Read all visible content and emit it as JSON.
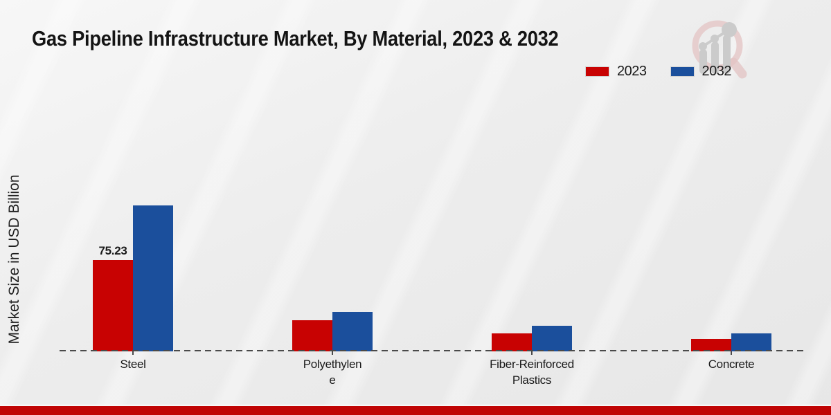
{
  "page": {
    "title": "Gas Pipeline Infrastructure Market, By Material, 2023 & 2032",
    "ylabel": "Market Size in USD Billion"
  },
  "colors": {
    "series_2023": "#c80202",
    "series_2032": "#1b4f9c",
    "footer_bar": "#c00404",
    "baseline": "#4a4a4a",
    "background": "#ececec"
  },
  "watermark": {
    "name": "magnifier-growth-chart-logo",
    "ring_color": "#e3c3c3",
    "bars_color": "#cbcbcb"
  },
  "chart_data": {
    "type": "bar",
    "title": "Gas Pipeline Infrastructure Market, By Material, 2023 & 2032",
    "xlabel": "",
    "ylabel": "Market Size in USD Billion",
    "categories": [
      "Steel",
      "Polyethylene",
      "Fiber-Reinforced Plastics",
      "Concrete"
    ],
    "category_label_lines": [
      [
        "Steel"
      ],
      [
        "Polyethylen",
        "e"
      ],
      [
        "Fiber-Reinforced",
        "Plastics"
      ],
      [
        "Concrete"
      ]
    ],
    "series": [
      {
        "name": "2023",
        "color": "#c80202",
        "values": [
          75.23,
          25.6,
          14.8,
          10.3
        ]
      },
      {
        "name": "2032",
        "color": "#1b4f9c",
        "values": [
          120.2,
          32.5,
          21.1,
          14.8
        ]
      }
    ],
    "data_labels": [
      {
        "series": "2023",
        "category": "Steel",
        "text": "75.23"
      }
    ],
    "ylim": [
      0,
      130
    ],
    "grid": false,
    "y_axis_ticks_visible": false,
    "baseline_style": "dashed",
    "legend_position": "top-right"
  }
}
